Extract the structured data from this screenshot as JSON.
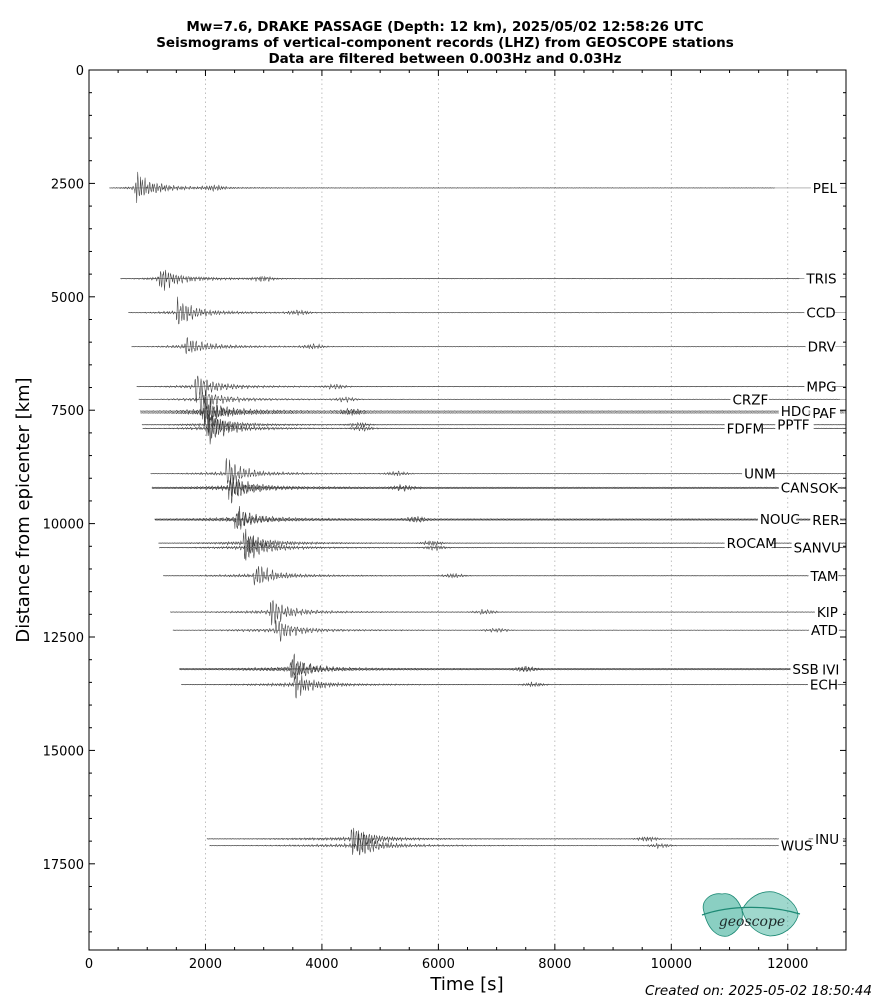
{
  "chart_data": {
    "type": "line",
    "title_lines": [
      "Mw=7.6, DRAKE PASSAGE (Depth: 12 km), 2025/05/02 12:58:26 UTC",
      "Seismograms of vertical-component records (LHZ) from GEOSCOPE stations",
      "Data are filtered between 0.003Hz and 0.03Hz"
    ],
    "xlabel": "Time [s]",
    "ylabel": "Distance from epicenter [km]",
    "xlim": [
      0,
      13000
    ],
    "ylim": [
      19400,
      0
    ],
    "x_ticks": [
      0,
      2000,
      4000,
      6000,
      8000,
      10000,
      12000
    ],
    "y_ticks": [
      0,
      2500,
      5000,
      7500,
      10000,
      12500,
      15000,
      17500
    ],
    "grid": "vertical dotted",
    "stations": [
      {
        "name": "PEL",
        "distance": 2600,
        "arrival": 780,
        "amp": 1.0,
        "label_x": 12430
      },
      {
        "name": "TRIS",
        "distance": 4600,
        "arrival": 1200,
        "amp": 0.8,
        "label_x": 12320
      },
      {
        "name": "CCD",
        "distance": 5350,
        "arrival": 1500,
        "amp": 1.0,
        "label_x": 12320
      },
      {
        "name": "DRV",
        "distance": 6100,
        "arrival": 1620,
        "amp": 0.6,
        "label_x": 12340
      },
      {
        "name": "MPG",
        "distance": 6980,
        "arrival": 1820,
        "amp": 0.9,
        "label_x": 12320
      },
      {
        "name": "CRZF",
        "distance": 7260,
        "arrival": 1900,
        "amp": 0.8,
        "label_x": 11050
      },
      {
        "name": "HDC",
        "distance": 7520,
        "arrival": 1950,
        "amp": 1.0,
        "label_x": 11880
      },
      {
        "name": "PAF",
        "distance": 7560,
        "arrival": 1960,
        "amp": 0.9,
        "label_x": 12420
      },
      {
        "name": "PPTF",
        "distance": 7820,
        "arrival": 2020,
        "amp": 1.0,
        "label_x": 11820
      },
      {
        "name": "FDFM",
        "distance": 7900,
        "arrival": 2050,
        "amp": 1.0,
        "label_x": 10950
      },
      {
        "name": "UNM",
        "distance": 8900,
        "arrival": 2350,
        "amp": 0.9,
        "label_x": 11250
      },
      {
        "name": "CAN",
        "distance": 9200,
        "arrival": 2400,
        "amp": 1.0,
        "label_x": 11880
      },
      {
        "name": "SOK",
        "distance": 9220,
        "arrival": 2400,
        "amp": 0.7,
        "label_x": 12380
      },
      {
        "name": "NOUC",
        "distance": 9900,
        "arrival": 2500,
        "amp": 0.9,
        "label_x": 11520
      },
      {
        "name": "RER",
        "distance": 9920,
        "arrival": 2520,
        "amp": 0.5,
        "label_x": 12420
      },
      {
        "name": "ROCAM",
        "distance": 10430,
        "arrival": 2650,
        "amp": 0.9,
        "label_x": 10950
      },
      {
        "name": "SANVU",
        "distance": 10530,
        "arrival": 2680,
        "amp": 0.9,
        "label_x": 12100
      },
      {
        "name": "TAM",
        "distance": 11150,
        "arrival": 2830,
        "amp": 0.8,
        "label_x": 12390
      },
      {
        "name": "KIP",
        "distance": 11950,
        "arrival": 3100,
        "amp": 1.0,
        "label_x": 12500
      },
      {
        "name": "ATD",
        "distance": 12350,
        "arrival": 3200,
        "amp": 0.8,
        "label_x": 12400
      },
      {
        "name": "SSB",
        "distance": 13200,
        "arrival": 3450,
        "amp": 1.0,
        "label_x": 12080
      },
      {
        "name": "IVI",
        "distance": 13220,
        "arrival": 3450,
        "amp": 0.6,
        "label_x": 12590
      },
      {
        "name": "ECH",
        "distance": 13550,
        "arrival": 3520,
        "amp": 0.8,
        "label_x": 12380
      },
      {
        "name": "INU",
        "distance": 16950,
        "arrival": 4500,
        "amp": 1.0,
        "label_x": 12470
      },
      {
        "name": "WUS",
        "distance": 17100,
        "arrival": 4600,
        "amp": 1.0,
        "label_x": 11880
      }
    ]
  },
  "footer": {
    "created_on": "Created on: 2025-05-02 18:50:44"
  },
  "logo": {
    "text": "geoscope",
    "color": "#2aa890"
  },
  "colors": {
    "trace": "#222222",
    "baseline": "#888888",
    "grid": "#b0b0b0"
  }
}
